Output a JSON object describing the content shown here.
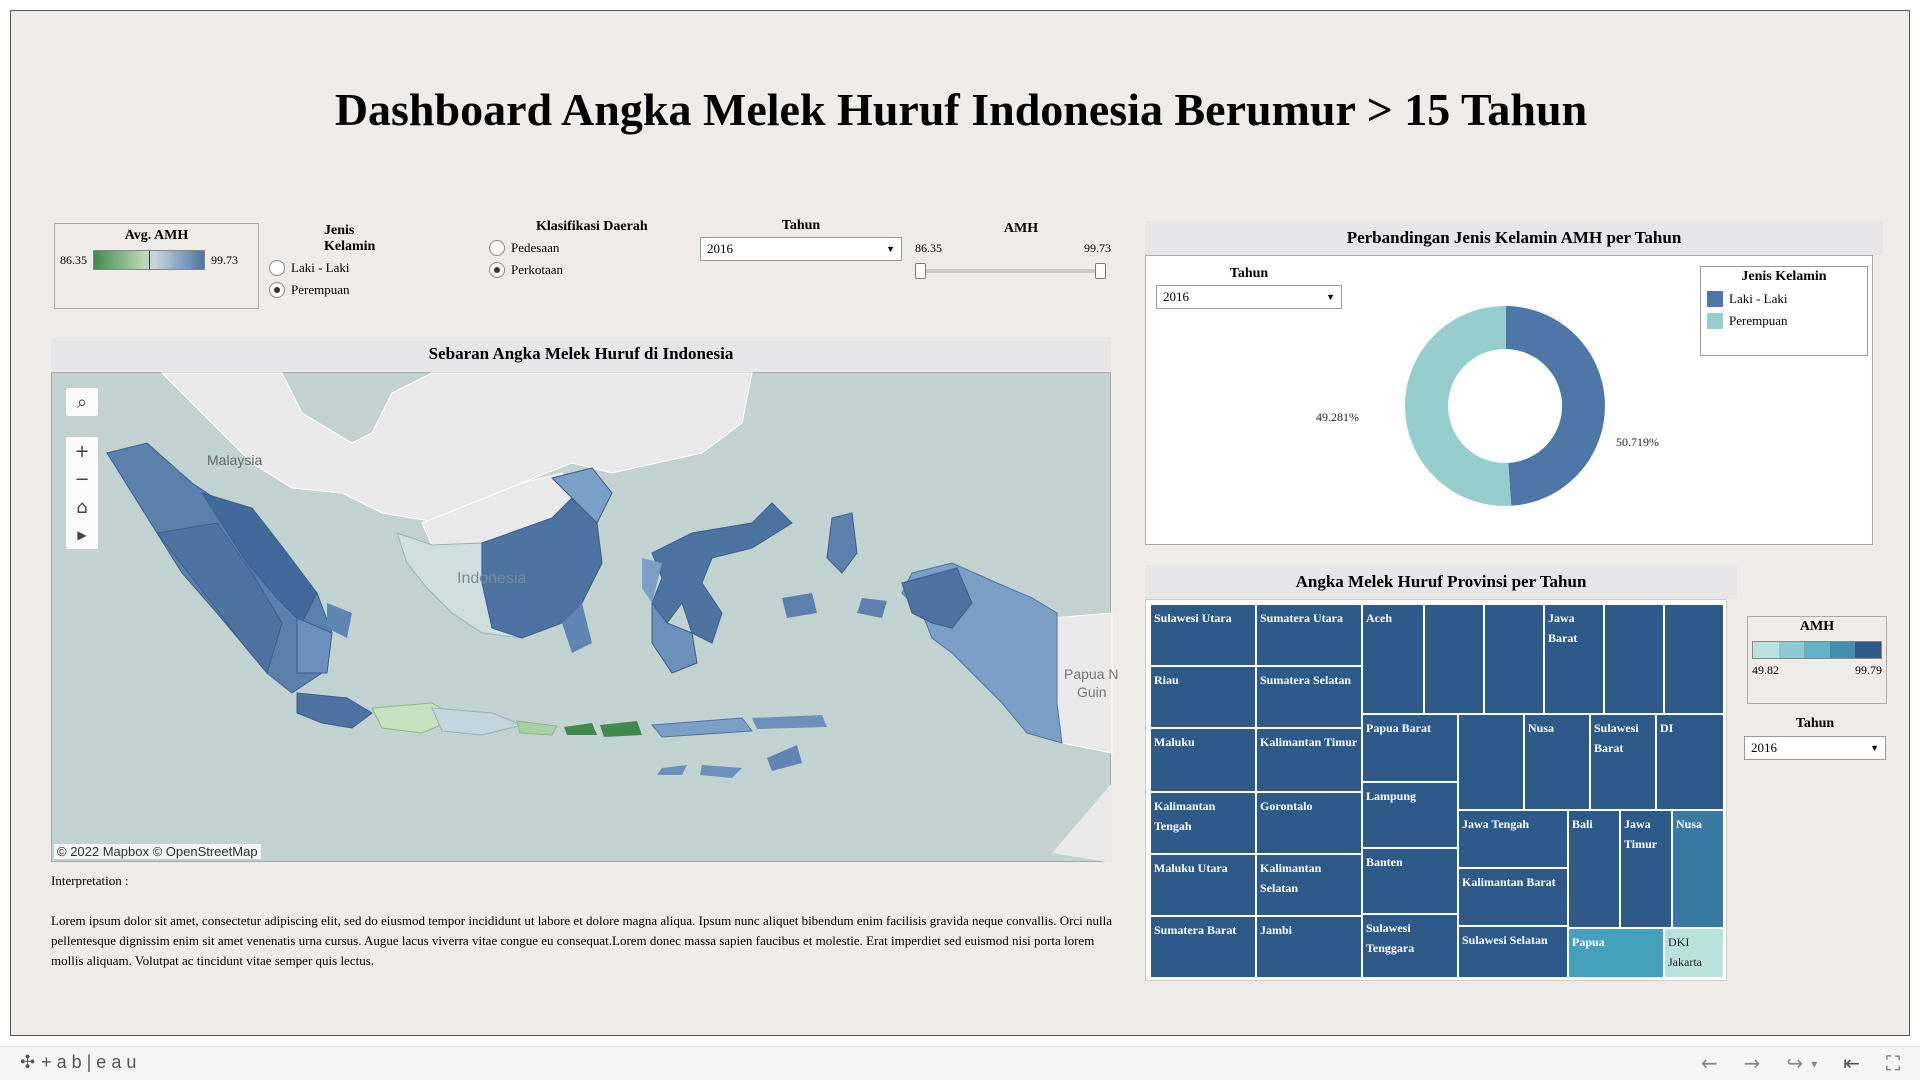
{
  "title": "Dashboard Angka Melek Huruf Indonesia Berumur > 15 Tahun",
  "avg_legend": {
    "title": "Avg. AMH",
    "min": "86.35",
    "max": "99.73"
  },
  "gender_filter": {
    "title": "Jenis Kelamin",
    "options": [
      "Laki - Laki",
      "Perempuan"
    ],
    "selected": "Perempuan"
  },
  "area_filter": {
    "title": "Klasifikasi Daerah",
    "options": [
      "Pedesaan",
      "Perkotaan"
    ],
    "selected": "Perkotaan"
  },
  "year_filter": {
    "title": "Tahun",
    "value": "2016"
  },
  "amh_slider": {
    "title": "AMH",
    "min": "86.35",
    "max": "99.73"
  },
  "map": {
    "title": "Sebaran Angka Melek Huruf di Indonesia",
    "labels": {
      "malaysia": "Malaysia",
      "indonesia": "Indonesia",
      "papua": "Papua N",
      "guinea": "Guin"
    },
    "attribution": "© 2022 Mapbox  © OpenStreetMap"
  },
  "interpretation": {
    "label": "Interpretation :",
    "text": "Lorem ipsum dolor sit amet, consectetur adipiscing elit, sed do eiusmod tempor incididunt ut labore et dolore magna aliqua. Ipsum nunc aliquet bibendum enim facilisis gravida neque convallis. Orci nulla pellentesque dignissim enim sit amet venenatis urna cursus. Augue lacus viverra vitae congue eu consequat.Lorem donec massa sapien faucibus et molestie. Erat imperdiet sed euismod nisi porta lorem mollis aliquam. Volutpat ac tincidunt vitae semper quis lectus."
  },
  "donut": {
    "title": "Perbandingan Jenis Kelamin AMH per Tahun",
    "year_label": "Tahun",
    "year_value": "2016",
    "legend_title": "Jenis Kelamin",
    "legend_items": [
      {
        "label": "Laki - Laki",
        "color": "#4e76a6"
      },
      {
        "label": "Perempuan",
        "color": "#96cdcd"
      }
    ],
    "label_left": "49.281%",
    "label_right": "50.719%"
  },
  "treemap": {
    "title": "Angka Melek Huruf Provinsi per Tahun",
    "cells": [
      "Sulawesi Utara",
      "Sumatera Utara",
      "Riau",
      "Sumatera Selatan",
      "Maluku",
      "Kalimantan Timur",
      "Kalimantan Tengah",
      "Gorontalo",
      "Maluku Utara",
      "Kalimantan Selatan",
      "Sumatera Barat",
      "Jambi",
      "Aceh",
      "Jawa Barat",
      "Papua Barat",
      "Nusa",
      "Sulawesi Barat",
      "DI",
      "Lampung",
      "Jawa Tengah",
      "Bali",
      "Jawa Timur",
      "Nusa",
      "Banten",
      "Kalimantan Barat",
      "Sulawesi Tenggara",
      "Sulawesi Selatan",
      "Papua",
      "DKI Jakarta"
    ],
    "legend_title": "AMH",
    "legend_min": "49.82",
    "legend_max": "99.79",
    "year_label": "Tahun",
    "year_value": "2016"
  },
  "footer": {
    "brand": "+ a b | e a u"
  },
  "colors": {
    "dark_blue": "#2d5a88",
    "teal": "#3f8fae",
    "light_teal": "#5fb3c4",
    "pale_teal": "#b9e2dc",
    "donut_blue": "#4e76a6",
    "donut_teal": "#96cdcd"
  }
}
